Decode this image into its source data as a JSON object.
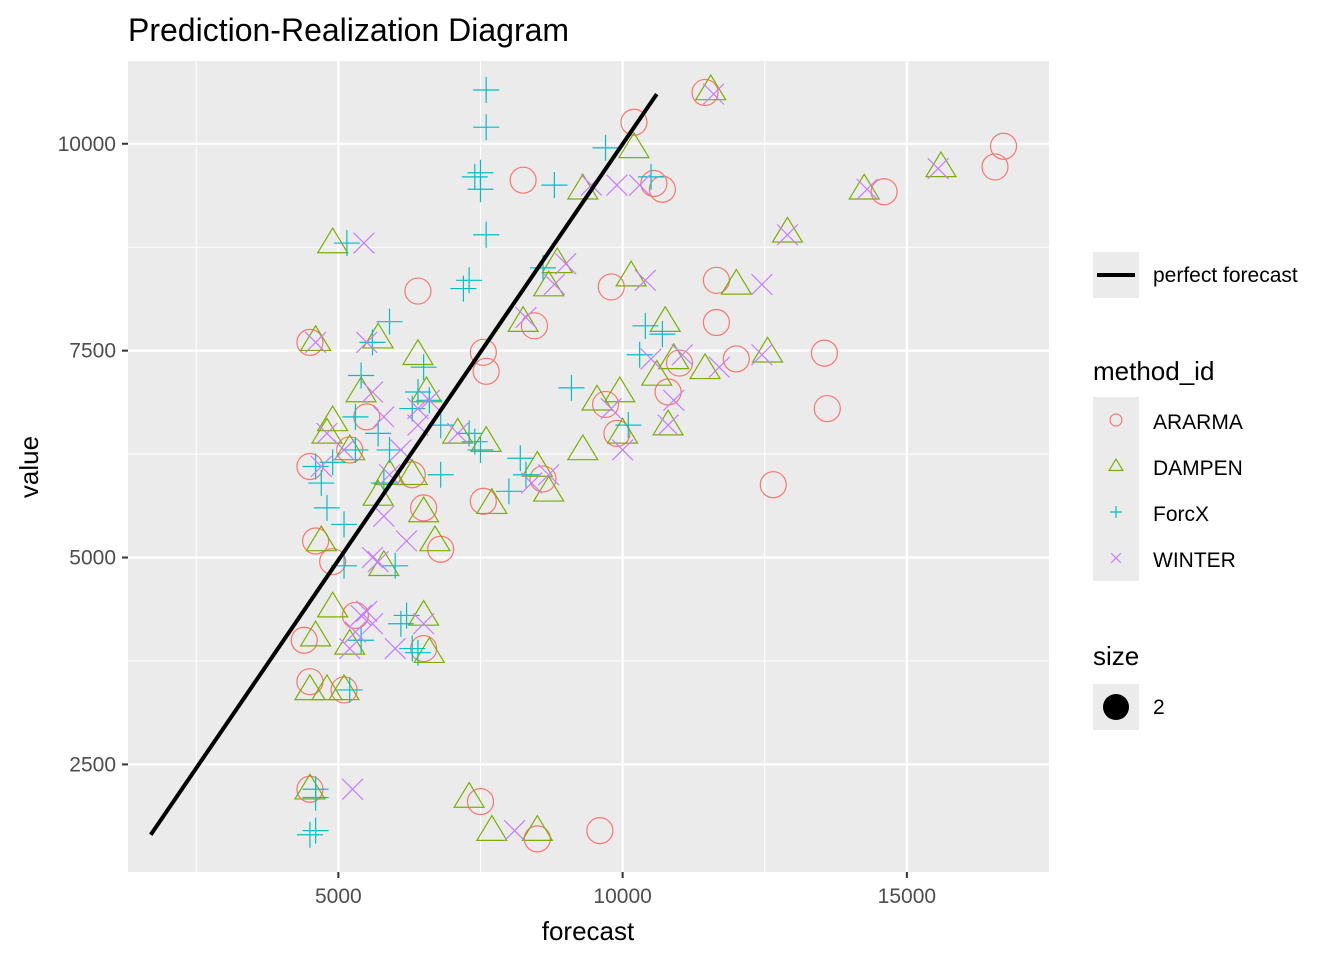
{
  "chart_data": {
    "type": "scatter",
    "title": "Prediction-Realization Diagram",
    "xlabel": "forecast",
    "ylabel": "value",
    "xlim": [
      1300,
      17500
    ],
    "ylim": [
      1200,
      11000
    ],
    "x_ticks": [
      5000,
      10000,
      15000
    ],
    "x_minor_ticks": [
      2500,
      7500,
      12500
    ],
    "y_ticks": [
      2500,
      5000,
      7500,
      10000
    ],
    "y_minor_ticks": [
      3750,
      6250,
      8750
    ],
    "x_tick_labels": [
      "5000",
      "10000",
      "15000"
    ],
    "y_tick_labels": [
      "2500",
      "5000",
      "7500",
      "10000"
    ],
    "grid": true,
    "panel_background": "#ebebeb",
    "perfect_forecast_line": {
      "label": "perfect forecast",
      "x": [
        1700,
        10600
      ],
      "y": [
        1650,
        10600
      ],
      "color": "#000000"
    },
    "series": [
      {
        "name": "ARARMA",
        "marker": "circle",
        "color": "#F8766D",
        "points": [
          [
            16700,
            9970
          ],
          [
            16550,
            9720
          ],
          [
            14600,
            9420
          ],
          [
            13600,
            6800
          ],
          [
            13550,
            7470
          ],
          [
            12650,
            5880
          ],
          [
            11650,
            8350
          ],
          [
            11650,
            7840
          ],
          [
            12000,
            7400
          ],
          [
            11450,
            10620
          ],
          [
            10200,
            10260
          ],
          [
            10700,
            9450
          ],
          [
            9800,
            8270
          ],
          [
            8250,
            9560
          ],
          [
            8450,
            7800
          ],
          [
            7550,
            7480
          ],
          [
            7600,
            7250
          ],
          [
            7550,
            5680
          ],
          [
            6400,
            8220
          ],
          [
            4500,
            6100
          ],
          [
            5100,
            3400
          ],
          [
            5300,
            4300
          ],
          [
            4900,
            4950
          ],
          [
            4600,
            5200
          ],
          [
            4500,
            7600
          ],
          [
            4500,
            3500
          ],
          [
            4400,
            4000
          ],
          [
            4500,
            2200
          ],
          [
            7500,
            2050
          ],
          [
            8500,
            1600
          ],
          [
            9600,
            1700
          ],
          [
            9900,
            6500
          ],
          [
            9700,
            6850
          ],
          [
            11000,
            7350
          ],
          [
            10800,
            7000
          ],
          [
            6500,
            3900
          ],
          [
            6500,
            5600
          ],
          [
            6800,
            5100
          ],
          [
            5200,
            6300
          ],
          [
            5500,
            6700
          ],
          [
            6300,
            6000
          ],
          [
            8600,
            5950
          ],
          [
            10550,
            9520
          ]
        ]
      },
      {
        "name": "DAMPEN",
        "marker": "triangle",
        "color": "#7CAE00",
        "points": [
          [
            15600,
            9720
          ],
          [
            14250,
            9450
          ],
          [
            12900,
            8930
          ],
          [
            12000,
            8300
          ],
          [
            12550,
            7480
          ],
          [
            11450,
            7280
          ],
          [
            10900,
            7400
          ],
          [
            10750,
            7850
          ],
          [
            10150,
            8400
          ],
          [
            10200,
            9950
          ],
          [
            11550,
            10650
          ],
          [
            9300,
            9450
          ],
          [
            8850,
            8560
          ],
          [
            8700,
            8280
          ],
          [
            8250,
            7850
          ],
          [
            7100,
            6500
          ],
          [
            6550,
            7000
          ],
          [
            6400,
            7450
          ],
          [
            5700,
            7650
          ],
          [
            5400,
            7000
          ],
          [
            4600,
            7620
          ],
          [
            4800,
            6500
          ],
          [
            4900,
            6650
          ],
          [
            4700,
            5200
          ],
          [
            4600,
            4050
          ],
          [
            4800,
            3400
          ],
          [
            5100,
            3400
          ],
          [
            4900,
            4400
          ],
          [
            5200,
            3950
          ],
          [
            4500,
            3400
          ],
          [
            4500,
            2200
          ],
          [
            4900,
            8800
          ],
          [
            6500,
            4300
          ],
          [
            6600,
            3850
          ],
          [
            6500,
            5550
          ],
          [
            6700,
            5200
          ],
          [
            5800,
            4900
          ],
          [
            5900,
            6000
          ],
          [
            5700,
            5750
          ],
          [
            7300,
            2100
          ],
          [
            7700,
            1700
          ],
          [
            8500,
            1700
          ],
          [
            9950,
            7000
          ],
          [
            9550,
            6900
          ],
          [
            9300,
            6300
          ],
          [
            10000,
            6500
          ],
          [
            10800,
            6600
          ],
          [
            10600,
            7200
          ],
          [
            8500,
            6100
          ],
          [
            8700,
            5800
          ],
          [
            7700,
            5650
          ],
          [
            7600,
            6400
          ],
          [
            5200,
            6300
          ],
          [
            6300,
            6000
          ]
        ]
      },
      {
        "name": "ForcX",
        "marker": "plus",
        "color": "#00BFC4",
        "points": [
          [
            7600,
            10650
          ],
          [
            7600,
            10200
          ],
          [
            7500,
            9650
          ],
          [
            7400,
            9600
          ],
          [
            7500,
            9450
          ],
          [
            7600,
            8900
          ],
          [
            7300,
            8350
          ],
          [
            7200,
            8250
          ],
          [
            8800,
            9500
          ],
          [
            9700,
            9950
          ],
          [
            10500,
            9600
          ],
          [
            10400,
            7800
          ],
          [
            10300,
            7450
          ],
          [
            10100,
            6600
          ],
          [
            9100,
            7050
          ],
          [
            7300,
            6500
          ],
          [
            7400,
            6400
          ],
          [
            7500,
            6300
          ],
          [
            6800,
            6000
          ],
          [
            6500,
            7300
          ],
          [
            6400,
            7000
          ],
          [
            6600,
            6900
          ],
          [
            5900,
            7850
          ],
          [
            5600,
            7600
          ],
          [
            5400,
            7200
          ],
          [
            5700,
            6500
          ],
          [
            5300,
            6300
          ],
          [
            4900,
            6150
          ],
          [
            4700,
            5900
          ],
          [
            4800,
            5600
          ],
          [
            4600,
            6100
          ],
          [
            5100,
            5400
          ],
          [
            5400,
            4000
          ],
          [
            5200,
            3400
          ],
          [
            5100,
            4900
          ],
          [
            4600,
            2200
          ],
          [
            4600,
            2100
          ],
          [
            4600,
            1700
          ],
          [
            4500,
            1650
          ],
          [
            5150,
            8800
          ],
          [
            6300,
            3900
          ],
          [
            6200,
            4300
          ],
          [
            6100,
            4200
          ],
          [
            6400,
            3850
          ],
          [
            5800,
            5900
          ],
          [
            5900,
            6300
          ],
          [
            6300,
            6800
          ],
          [
            6800,
            6600
          ],
          [
            8600,
            8500
          ],
          [
            8200,
            6200
          ],
          [
            8000,
            5800
          ],
          [
            6000,
            4900
          ],
          [
            8300,
            6000
          ],
          [
            10700,
            7700
          ],
          [
            5300,
            6700
          ]
        ]
      },
      {
        "name": "WINTER",
        "marker": "x",
        "color": "#C77CFF",
        "points": [
          [
            15550,
            9700
          ],
          [
            14300,
            9450
          ],
          [
            12900,
            8900
          ],
          [
            12450,
            8300
          ],
          [
            12450,
            7450
          ],
          [
            11700,
            7300
          ],
          [
            11050,
            7450
          ],
          [
            10400,
            8350
          ],
          [
            10300,
            9500
          ],
          [
            9900,
            9500
          ],
          [
            11600,
            10600
          ],
          [
            9450,
            9500
          ],
          [
            9000,
            8550
          ],
          [
            8800,
            8300
          ],
          [
            8300,
            7900
          ],
          [
            6600,
            6900
          ],
          [
            6400,
            6800
          ],
          [
            5500,
            7600
          ],
          [
            5600,
            7000
          ],
          [
            4600,
            7600
          ],
          [
            5450,
            8800
          ],
          [
            5800,
            6700
          ],
          [
            5100,
            6300
          ],
          [
            5600,
            5000
          ],
          [
            5700,
            4950
          ],
          [
            5400,
            4300
          ],
          [
            5300,
            4100
          ],
          [
            5500,
            4350
          ],
          [
            5600,
            4200
          ],
          [
            5200,
            3900
          ],
          [
            5250,
            2200
          ],
          [
            6000,
            3900
          ],
          [
            6500,
            4200
          ],
          [
            6200,
            5200
          ],
          [
            5800,
            5500
          ],
          [
            6400,
            6600
          ],
          [
            7100,
            6500
          ],
          [
            8700,
            6000
          ],
          [
            10500,
            7400
          ],
          [
            10900,
            6900
          ],
          [
            10800,
            6600
          ],
          [
            9800,
            6800
          ],
          [
            10000,
            6300
          ],
          [
            8400,
            5900
          ],
          [
            8100,
            1700
          ],
          [
            4800,
            6500
          ],
          [
            4700,
            6100
          ],
          [
            6100,
            6300
          ],
          [
            5900,
            6000
          ]
        ]
      }
    ],
    "legends": [
      {
        "title": "",
        "entries": [
          "perfect forecast"
        ]
      },
      {
        "title": "method_id",
        "entries": [
          "ARARMA",
          "DAMPEN",
          "ForcX",
          "WINTER"
        ]
      },
      {
        "title": "size",
        "entries": [
          "2"
        ]
      }
    ],
    "legend_position": "right"
  }
}
